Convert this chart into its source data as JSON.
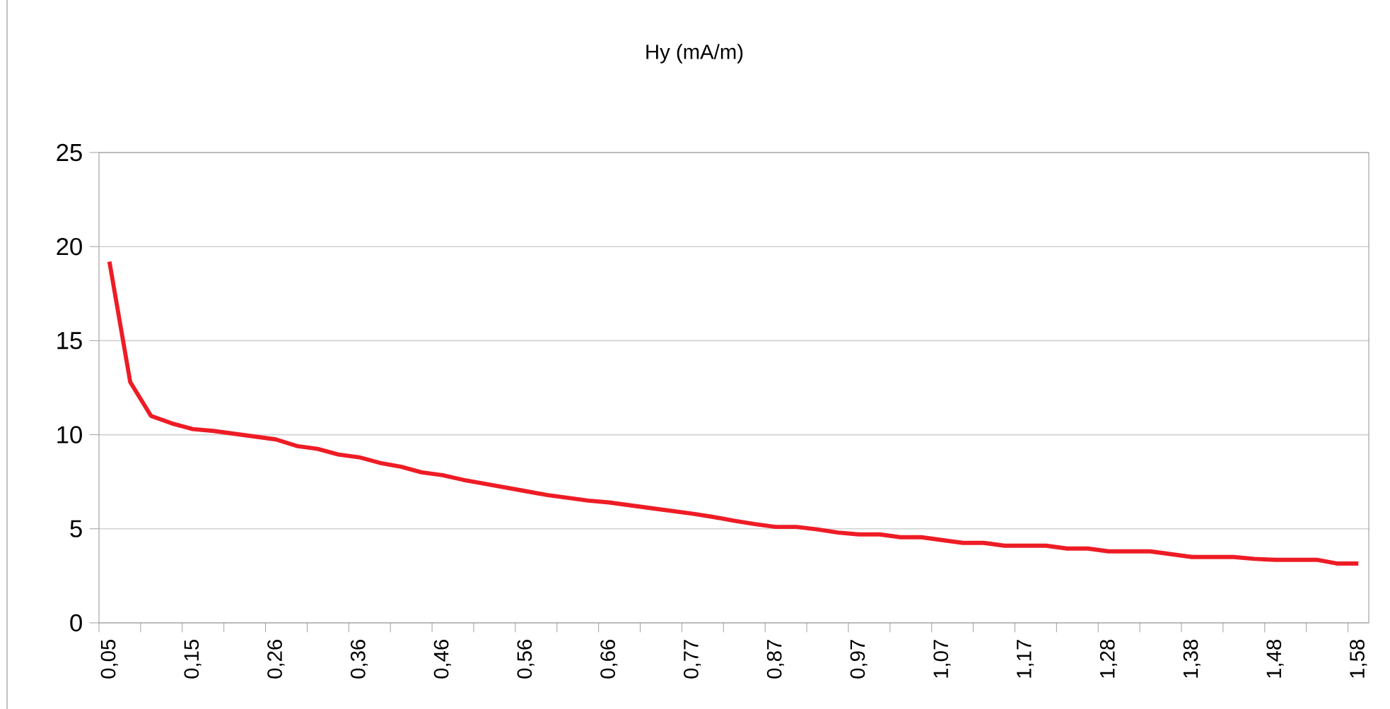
{
  "chart_data": {
    "type": "line",
    "title": "Hy (mA/m)",
    "categories": [
      "0,05",
      null,
      null,
      null,
      "0,15",
      null,
      null,
      null,
      "0,26",
      null,
      null,
      null,
      "0,36",
      null,
      null,
      null,
      "0,46",
      null,
      null,
      null,
      "0,56",
      null,
      null,
      null,
      "0,66",
      null,
      null,
      null,
      "0,77",
      null,
      null,
      null,
      "0,87",
      null,
      null,
      null,
      "0,97",
      null,
      null,
      null,
      "1,07",
      null,
      null,
      null,
      "1,17",
      null,
      null,
      null,
      "1,28",
      null,
      null,
      null,
      "1,38",
      null,
      null,
      null,
      "1,48",
      null,
      null,
      null,
      "1,58"
    ],
    "values": [
      19.2,
      12.8,
      11.0,
      10.6,
      10.3,
      10.2,
      10.05,
      9.9,
      9.75,
      9.4,
      9.25,
      8.95,
      8.8,
      8.5,
      8.3,
      8.0,
      7.85,
      7.6,
      7.4,
      7.2,
      7.0,
      6.8,
      6.65,
      6.5,
      6.4,
      6.25,
      6.1,
      5.95,
      5.8,
      5.63,
      5.43,
      5.25,
      5.1,
      5.1,
      4.97,
      4.8,
      4.7,
      4.7,
      4.55,
      4.55,
      4.4,
      4.25,
      4.25,
      4.1,
      4.1,
      4.1,
      3.95,
      3.95,
      3.8,
      3.8,
      3.8,
      3.65,
      3.5,
      3.5,
      3.5,
      3.4,
      3.35,
      3.35,
      3.35,
      3.15,
      3.15
    ],
    "color": "#ee1c25",
    "ylim": [
      0,
      25
    ],
    "yticks": [
      0,
      5,
      10,
      15,
      20,
      25
    ],
    "grid": "y",
    "marker": "none",
    "line_style": "solid"
  }
}
